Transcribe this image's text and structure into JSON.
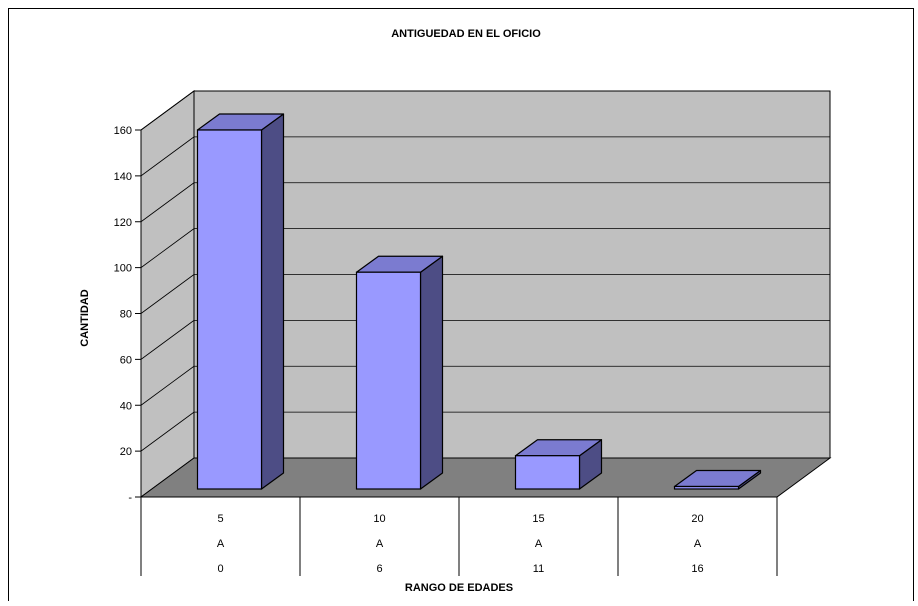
{
  "chart_data": {
    "type": "bar",
    "title": "ANTIGUEDAD EN EL OFICIO",
    "xlabel": "RANGO DE EDADES",
    "ylabel": "CANTIDAD",
    "categories": [
      [
        "5",
        "A",
        "0"
      ],
      [
        "10",
        "A",
        "6"
      ],
      [
        "15",
        "A",
        "11"
      ],
      [
        "20",
        "A",
        "16"
      ]
    ],
    "values": [
      160,
      98,
      18,
      2
    ],
    "ylim": [
      0,
      160
    ],
    "yticks": [
      0,
      20,
      40,
      60,
      80,
      100,
      120,
      140,
      160
    ],
    "ytick_labels": [
      "-",
      "20",
      "40",
      "60",
      "80",
      "100",
      "120",
      "140",
      "160"
    ],
    "grid": true,
    "legend": "none",
    "colors": {
      "bar_front": "#9999ff",
      "bar_top": "#7b7bd0",
      "bar_side": "#4d4d85",
      "back_wall": "#c0c0c0",
      "side_wall": "#c0c0c0",
      "floor": "#808080",
      "outline": "#000000"
    }
  }
}
